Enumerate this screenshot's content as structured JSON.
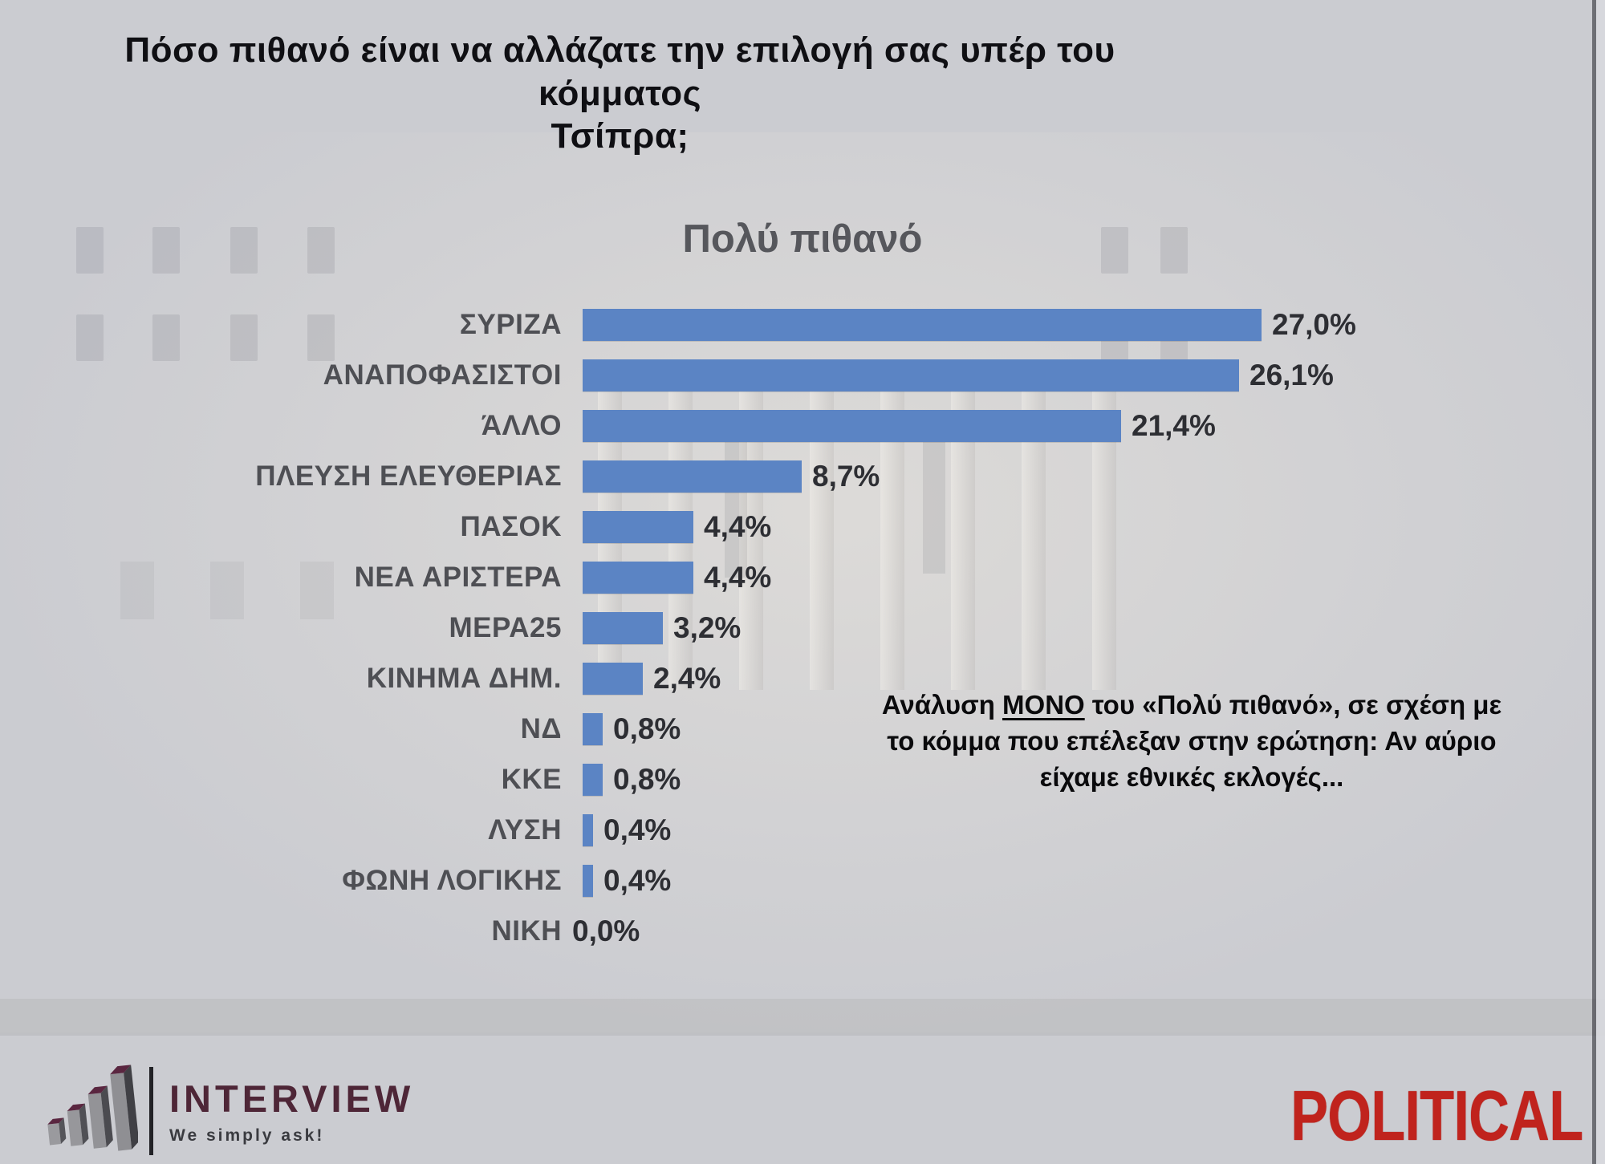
{
  "question": {
    "line1": "Πόσο πιθανό είναι να αλλάζατε την επιλογή σας υπέρ του κόμματος",
    "line2": "Τσίπρα;"
  },
  "chart_data": {
    "type": "bar",
    "orientation": "horizontal",
    "title": "Πολύ πιθανό",
    "unit": "%",
    "categories": [
      "ΣΥΡΙΖΑ",
      "ΑΝΑΠΟΦΑΣΙΣΤΟΙ",
      "ΆΛΛΟ",
      "ΠΛΕΥΣΗ ΕΛΕΥΘΕΡΙΑΣ",
      "ΠΑΣΟΚ",
      "ΝΕΑ ΑΡΙΣΤΕΡΑ",
      "ΜΕΡΑ25",
      "ΚΙΝΗΜΑ ΔΗΜ.",
      "ΝΔ",
      "ΚΚΕ",
      "ΛΥΣΗ",
      "ΦΩΝΗ ΛΟΓΙΚΗΣ",
      "ΝΙΚΗ"
    ],
    "values": [
      27.0,
      26.1,
      21.4,
      8.7,
      4.4,
      4.4,
      3.2,
      2.4,
      0.8,
      0.8,
      0.4,
      0.4,
      0.0
    ],
    "value_labels": [
      "27,0%",
      "26,1%",
      "21,4%",
      "8,7%",
      "4,4%",
      "4,4%",
      "3,2%",
      "2,4%",
      "0,8%",
      "0,8%",
      "0,4%",
      "0,4%",
      "0,0%"
    ],
    "bar_color": "#5b84c4",
    "xlim": [
      0,
      28.5
    ],
    "grid": false,
    "legend": false
  },
  "annotation": {
    "line1_pre": "Ανάλυση ",
    "line1_underlined": "ΜΟΝΟ",
    "line1_post": " του «Πολύ πιθανό», σε σχέση με",
    "line2": "το κόμμα που επέλεξαν στην ερώτηση: Αν αύριο",
    "line3": "είχαμε εθνικές εκλογές..."
  },
  "footer": {
    "interview_name": "INTERVIEW",
    "interview_tagline": "We simply ask!",
    "political_name": "POLITICAL"
  },
  "colors": {
    "background": "#cbccd1",
    "bar_blue": "#5b84c4",
    "political_red": "#c0231d",
    "interview_maroon": "#4e2637"
  }
}
